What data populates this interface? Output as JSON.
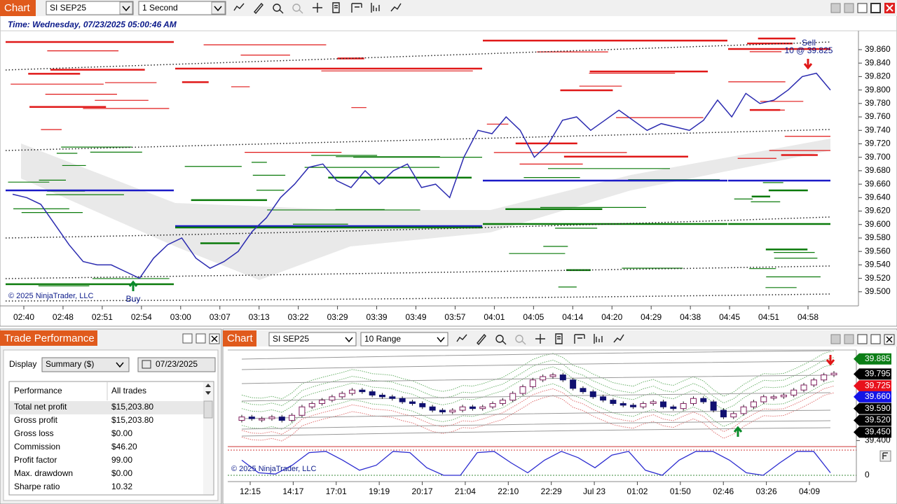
{
  "top_window": {
    "tab": "Chart",
    "instrument": "SI SEP25",
    "interval": "1 Second",
    "time_label": "Time: Wednesday, 07/23/2025 05:00:46 AM",
    "copyright": "© 2025 NinjaTrader, LLC",
    "sell_label": "Sell",
    "sell_fill": "10 @ 39.825",
    "buy_label": "Buy",
    "ylim": [
      39.479,
      39.887
    ],
    "yticks": [
      {
        "value": 39.86,
        "label": "39.860"
      },
      {
        "value": 39.84,
        "label": "39.840"
      },
      {
        "value": 39.82,
        "label": "39.820"
      },
      {
        "value": 39.8,
        "label": "39.800"
      },
      {
        "value": 39.78,
        "label": "39.780"
      },
      {
        "value": 39.76,
        "label": "39.760"
      },
      {
        "value": 39.74,
        "label": "39.740"
      },
      {
        "value": 39.72,
        "label": "39.720"
      },
      {
        "value": 39.7,
        "label": "39.700"
      },
      {
        "value": 39.68,
        "label": "39.680"
      },
      {
        "value": 39.66,
        "label": "39.660"
      },
      {
        "value": 39.64,
        "label": "39.640"
      },
      {
        "value": 39.62,
        "label": "39.620"
      },
      {
        "value": 39.6,
        "label": "39.600"
      },
      {
        "value": 39.58,
        "label": "39.580"
      },
      {
        "value": 39.56,
        "label": "39.560"
      },
      {
        "value": 39.54,
        "label": "39.540"
      },
      {
        "value": 39.52,
        "label": "39.520"
      },
      {
        "value": 39.5,
        "label": "39.500"
      }
    ],
    "time_labels": [
      "02:40",
      "02:48",
      "02:51",
      "02:54",
      "03:00",
      "03:07",
      "03:13",
      "03:22",
      "03:29",
      "03:39",
      "03:49",
      "03:57",
      "04:01",
      "04:05",
      "04:14",
      "04:20",
      "04:29",
      "04:38",
      "04:45",
      "04:51",
      "04:58"
    ],
    "price": [
      39.645,
      39.64,
      39.63,
      39.6,
      39.57,
      39.545,
      39.54,
      39.54,
      39.53,
      39.52,
      39.55,
      39.57,
      39.58,
      39.55,
      39.535,
      39.545,
      39.56,
      39.59,
      39.61,
      39.64,
      39.66,
      39.685,
      39.69,
      39.665,
      39.655,
      39.68,
      39.66,
      39.68,
      39.69,
      39.655,
      39.66,
      39.64,
      39.7,
      39.74,
      39.735,
      39.76,
      39.74,
      39.7,
      39.72,
      39.755,
      39.76,
      39.74,
      39.755,
      39.77,
      39.755,
      39.74,
      39.75,
      39.745,
      39.74,
      39.755,
      39.785,
      39.76,
      39.795,
      39.78,
      39.785,
      39.8,
      39.82,
      39.825,
      39.8
    ]
  },
  "trade_performance": {
    "title": "Trade Performance",
    "display_label": "Display",
    "display_value": "Summary ($)",
    "date": "07/23/2025",
    "columns": [
      "Performance",
      "All trades"
    ],
    "rows": [
      [
        "Total net profit",
        "$15,203.80"
      ],
      [
        "Gross profit",
        "$15,203.80"
      ],
      [
        "Gross loss",
        "$0.00"
      ],
      [
        "Commission",
        "$46.20"
      ],
      [
        "Profit factor",
        "99.00"
      ],
      [
        "Max. drawdown",
        "$0.00"
      ],
      [
        "Sharpe ratio",
        "10.32"
      ]
    ]
  },
  "bottom_window": {
    "tab": "Chart",
    "instrument": "SI SEP25",
    "interval": "10 Range",
    "copyright": "© 2025 NinjaTrader, LLC",
    "ylim": [
      39.364,
      39.938
    ],
    "price_labels": [
      {
        "value": 39.885,
        "label": "39.885"
      },
      {
        "value": 39.795,
        "label": "39.795"
      },
      {
        "value": 39.725,
        "label": "39.725"
      },
      {
        "value": 39.66,
        "label": "39.660"
      },
      {
        "value": 39.59,
        "label": "39.590"
      },
      {
        "value": 39.52,
        "label": "39.520"
      },
      {
        "value": 39.45,
        "label": "39.450"
      }
    ],
    "price_label_colors": [
      "#0b7d16",
      "#000000",
      "#e8101c",
      "#1414e6",
      "#000000",
      "#000000",
      "#000000"
    ],
    "scale_tick": {
      "value": 39.4,
      "label": "39.400"
    },
    "time_labels": [
      "12:15",
      "14:17",
      "17:01",
      "19:19",
      "20:17",
      "21:04",
      "22:10",
      "22:29",
      "Jul 23",
      "01:02",
      "01:50",
      "02:46",
      "03:26",
      "04:09"
    ],
    "closes": [
      39.54,
      39.53,
      39.53,
      39.54,
      39.52,
      39.55,
      39.6,
      39.62,
      39.64,
      39.66,
      39.68,
      39.7,
      39.69,
      39.67,
      39.66,
      39.65,
      39.63,
      39.62,
      39.6,
      39.58,
      39.57,
      39.58,
      39.6,
      39.59,
      39.6,
      39.62,
      39.64,
      39.68,
      39.72,
      39.76,
      39.78,
      39.79,
      39.76,
      39.71,
      39.69,
      39.66,
      39.64,
      39.62,
      39.61,
      39.6,
      39.62,
      39.63,
      39.6,
      39.59,
      39.62,
      39.65,
      39.63,
      39.58,
      39.54,
      39.56,
      39.6,
      39.63,
      39.66,
      39.66,
      39.67,
      39.7,
      39.73,
      39.76,
      39.79,
      39.8
    ],
    "oscillator_ylim": [
      0,
      100
    ],
    "oscillator_ticks": [
      0
    ],
    "oscillator": [
      60,
      10,
      5,
      40,
      90,
      95,
      60,
      20,
      40,
      95,
      90,
      30,
      0,
      0,
      90,
      95,
      50,
      10,
      60,
      95,
      70,
      30,
      80,
      95,
      20,
      0,
      60,
      95,
      95,
      60,
      10,
      0,
      50,
      95,
      95,
      10
    ]
  }
}
